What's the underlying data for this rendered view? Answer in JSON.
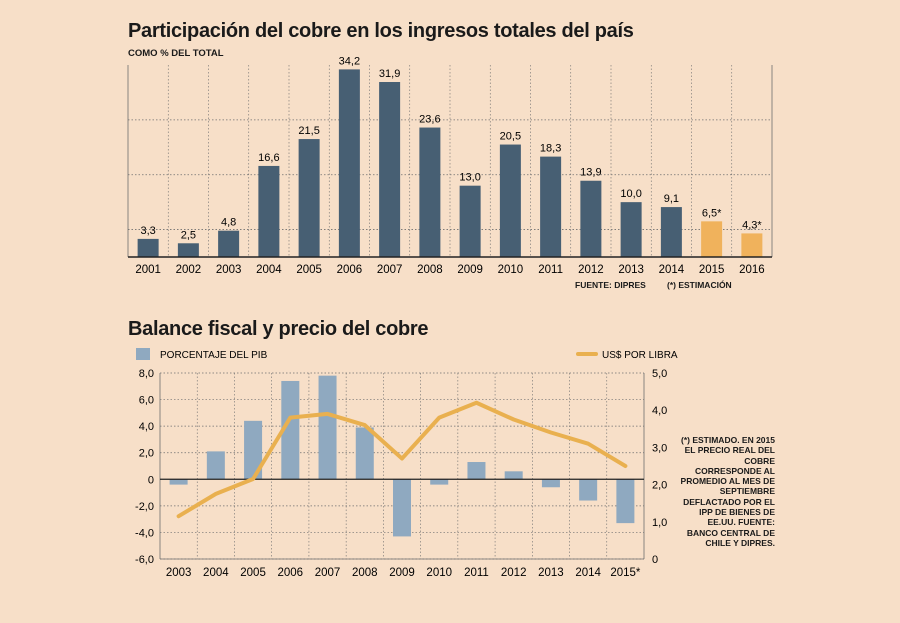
{
  "colors": {
    "background": "#f7dfc8",
    "bar_dark": "#475f73",
    "bar_highlight": "#f0b25c",
    "bar_light": "#8fa9c0",
    "line": "#e9b04f",
    "grid": "#6e6e6e"
  },
  "chart1": {
    "title": "Participación del cobre en los ingresos totales del país",
    "subtitle": "COMO % DEL TOTAL",
    "source": "FUENTE: DIPRES",
    "estimation_note": "(*) ESTIMACIÓN"
  },
  "chart2": {
    "title": "Balance fiscal y precio del cobre",
    "legend_bar": "PORCENTAJE DEL PIB",
    "legend_line": "US$ POR LIBRA",
    "side_note": "(*) ESTIMADO. EN 2015 EL PRECIO REAL DEL COBRE CORRESPONDE AL PROMEDIO AL MES DE SEPTIEMBRE DEFLACTADO POR EL IPP DE BIENES DE EE.UU. FUENTE: BANCO CENTRAL DE CHILE Y DIPRES."
  },
  "chart_data": [
    {
      "type": "bar",
      "title": "Participación del cobre en los ingresos totales del país",
      "ylabel": "COMO % DEL TOTAL",
      "categories": [
        "2001",
        "2002",
        "2003",
        "2004",
        "2005",
        "2006",
        "2007",
        "2008",
        "2009",
        "2010",
        "2011",
        "2012",
        "2013",
        "2014",
        "2015",
        "2016"
      ],
      "values": [
        3.3,
        2.5,
        4.8,
        16.6,
        21.5,
        34.2,
        31.9,
        23.6,
        13.0,
        20.5,
        18.3,
        13.9,
        10.0,
        9.1,
        6.5,
        4.3
      ],
      "value_labels": [
        "3,3",
        "2,5",
        "4,8",
        "16,6",
        "21,5",
        "34,2",
        "31,9",
        "23,6",
        "13,0",
        "20,5",
        "18,3",
        "13,9",
        "10,0",
        "9,1",
        "6,5*",
        "4,3*"
      ],
      "estimated": [
        false,
        false,
        false,
        false,
        false,
        false,
        false,
        false,
        false,
        false,
        false,
        false,
        false,
        false,
        true,
        true
      ],
      "ylim": [
        0,
        35
      ],
      "grid": true
    },
    {
      "type": "bar",
      "title": "Balance fiscal y precio del cobre",
      "categories": [
        "2003",
        "2004",
        "2005",
        "2006",
        "2007",
        "2008",
        "2009",
        "2010",
        "2011",
        "2012",
        "2013",
        "2014",
        "2015*"
      ],
      "series": [
        {
          "name": "PORCENTAJE DEL PIB",
          "type": "bar",
          "axis": "left",
          "values": [
            -0.4,
            2.1,
            4.4,
            7.4,
            7.8,
            3.9,
            -4.3,
            -0.4,
            1.3,
            0.6,
            -0.6,
            -1.6,
            -3.3
          ]
        },
        {
          "name": "US$ POR LIBRA",
          "type": "line",
          "axis": "right",
          "values": [
            1.15,
            1.75,
            2.15,
            3.8,
            3.9,
            3.6,
            2.7,
            3.8,
            4.2,
            3.75,
            3.4,
            3.1,
            2.5
          ]
        }
      ],
      "y_left": {
        "ylim": [
          -6,
          8
        ],
        "ticks": [
          "8,0",
          "6,0",
          "4,0",
          "2,0",
          "0",
          "-2,0",
          "-4,0",
          "-6,0"
        ],
        "tick_values": [
          8,
          6,
          4,
          2,
          0,
          -2,
          -4,
          -6
        ]
      },
      "y_right": {
        "ylim": [
          0,
          5
        ],
        "ticks": [
          "5,0",
          "4,0",
          "3,0",
          "2,0",
          "1,0",
          "0"
        ],
        "tick_values": [
          5,
          4,
          3,
          2,
          1,
          0
        ]
      },
      "legend": "top",
      "grid": true
    }
  ]
}
